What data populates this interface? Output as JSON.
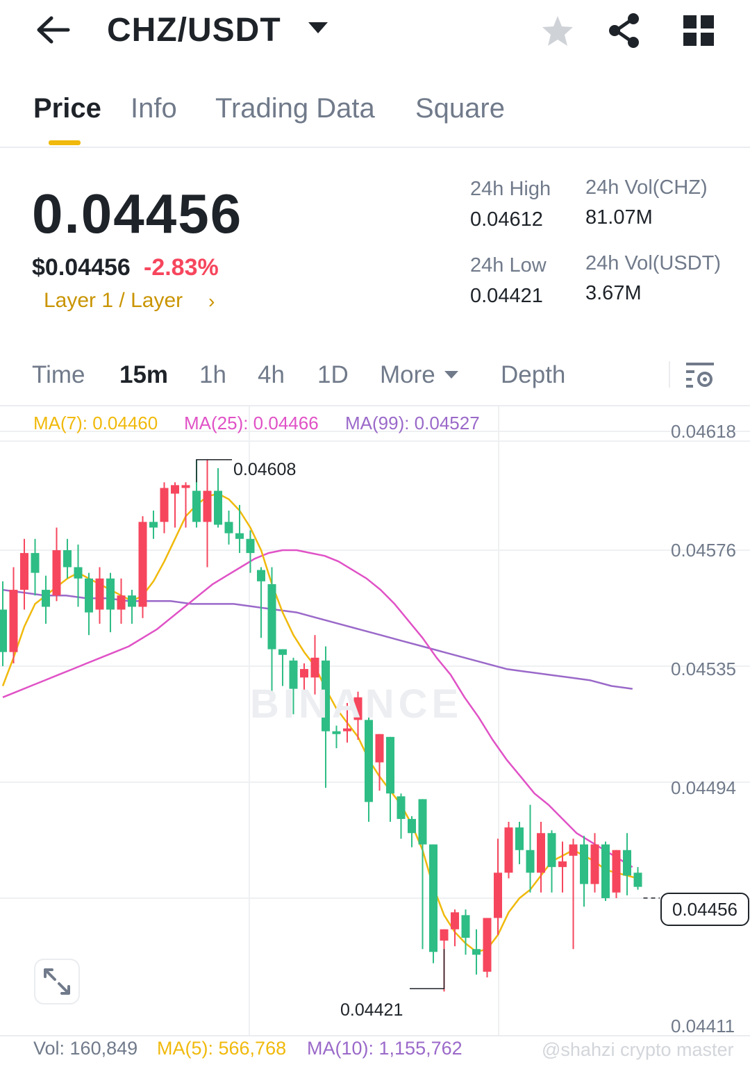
{
  "header": {
    "pair": "CHZ/USDT"
  },
  "tabs": [
    {
      "label": "Price"
    },
    {
      "label": "Info"
    },
    {
      "label": "Trading Data"
    },
    {
      "label": "Square"
    }
  ],
  "price": {
    "last": "0.04456",
    "usd": "$0.04456",
    "change": "-2.83%",
    "tag": "Layer 1 / Layer"
  },
  "stats": {
    "high_label": "24h High",
    "high": "0.04612",
    "low_label": "24h Low",
    "low": "0.04421",
    "vol_chz_label": "24h Vol(CHZ)",
    "vol_chz": "81.07M",
    "vol_usdt_label": "24h Vol(USDT)",
    "vol_usdt": "3.67M"
  },
  "intervals": {
    "time": "Time",
    "m15": "15m",
    "h1": "1h",
    "h4": "4h",
    "d1": "1D",
    "more": "More",
    "depth": "Depth"
  },
  "colors": {
    "up": "#f6465d",
    "down": "#2ebd85",
    "ma7": "#f0b90b",
    "ma25": "#e052c6",
    "ma99": "#9a69c9",
    "accent": "#f0b90b"
  },
  "chart_data": {
    "type": "candlestick",
    "indicators": {
      "ma7": "MA(7): 0.04460",
      "ma25": "MA(25): 0.04466",
      "ma99": "MA(99): 0.04527"
    },
    "y_axis_ticks": [
      "0.04618",
      "0.04576",
      "0.04535",
      "0.04494",
      "0.04411"
    ],
    "ylim": [
      0.04411,
      0.04618
    ],
    "highest_label": "0.04608",
    "lowest_label": "0.04421",
    "current_price_label": "0.04456",
    "brand_watermark": "BINANCE",
    "candles": [
      [
        0.04555,
        0.0454,
        0.04565,
        0.04535
      ],
      [
        0.0454,
        0.04562,
        0.0457,
        0.04536
      ],
      [
        0.04562,
        0.04575,
        0.0458,
        0.04555
      ],
      [
        0.04575,
        0.04568,
        0.0458,
        0.0456
      ],
      [
        0.04562,
        0.04556,
        0.04567,
        0.0455
      ],
      [
        0.0456,
        0.04576,
        0.04584,
        0.04558
      ],
      [
        0.04576,
        0.0457,
        0.0458,
        0.04566
      ],
      [
        0.0457,
        0.04566,
        0.04578,
        0.04556
      ],
      [
        0.04566,
        0.04554,
        0.04568,
        0.04546
      ],
      [
        0.04555,
        0.04566,
        0.0457,
        0.0455
      ],
      [
        0.04566,
        0.04555,
        0.04568,
        0.04547
      ],
      [
        0.04555,
        0.0456,
        0.04566,
        0.0455
      ],
      [
        0.0456,
        0.04556,
        0.04562,
        0.0455
      ],
      [
        0.04556,
        0.04586,
        0.04588,
        0.04552
      ],
      [
        0.04586,
        0.04584,
        0.0459,
        0.0458
      ],
      [
        0.04586,
        0.04598,
        0.046,
        0.04582
      ],
      [
        0.04596,
        0.04599,
        0.046,
        0.04584
      ],
      [
        0.04598,
        0.04599,
        0.046,
        0.04584
      ],
      [
        0.04597,
        0.04586,
        0.04608,
        0.04584
      ],
      [
        0.04586,
        0.04597,
        0.04608,
        0.0457
      ],
      [
        0.04597,
        0.04585,
        0.04605,
        0.04584
      ],
      [
        0.04586,
        0.04582,
        0.0459,
        0.04578
      ],
      [
        0.04582,
        0.0458,
        0.04592,
        0.04575
      ],
      [
        0.0458,
        0.04575,
        0.04583,
        0.04568
      ],
      [
        0.04569,
        0.04565,
        0.0457,
        0.04545
      ],
      [
        0.04564,
        0.04541,
        0.0457,
        0.04525
      ],
      [
        0.04541,
        0.04539,
        0.04541,
        0.04528
      ],
      [
        0.04537,
        0.04527,
        0.04538,
        0.04518
      ],
      [
        0.04531,
        0.04534,
        0.04536,
        0.04525
      ],
      [
        0.04531,
        0.04538,
        0.04546,
        0.04525
      ],
      [
        0.04537,
        0.04512,
        0.04542,
        0.04492
      ],
      [
        0.04512,
        0.04511,
        0.04514,
        0.04506
      ],
      [
        0.04512,
        0.04513,
        0.04522,
        0.04508
      ],
      [
        0.04516,
        0.04524,
        0.04526,
        0.04509
      ],
      [
        0.04516,
        0.04487,
        0.04517,
        0.0448
      ],
      [
        0.04501,
        0.04511,
        0.04511,
        0.04491
      ],
      [
        0.0451,
        0.0449,
        0.0451,
        0.0448
      ],
      [
        0.04489,
        0.04481,
        0.0449,
        0.04474
      ],
      [
        0.04481,
        0.04476,
        0.04482,
        0.04471
      ],
      [
        0.04488,
        0.04472,
        0.04488,
        0.04435
      ],
      [
        0.04472,
        0.04434,
        0.04472,
        0.0443
      ],
      [
        0.04438,
        0.04442,
        0.04442,
        0.0442
      ],
      [
        0.04442,
        0.04448,
        0.04449,
        0.04436
      ],
      [
        0.04447,
        0.04439,
        0.04449,
        0.04433
      ],
      [
        0.04435,
        0.04433,
        0.04442,
        0.04426
      ],
      [
        0.04427,
        0.04446,
        0.04446,
        0.04425
      ],
      [
        0.04446,
        0.04462,
        0.04474,
        0.0444
      ],
      [
        0.04462,
        0.04478,
        0.0448,
        0.0446
      ],
      [
        0.04478,
        0.0447,
        0.0448,
        0.04465
      ],
      [
        0.0447,
        0.04462,
        0.04486,
        0.04455
      ],
      [
        0.04462,
        0.04476,
        0.0448,
        0.04455
      ],
      [
        0.04476,
        0.04464,
        0.04477,
        0.04455
      ],
      [
        0.04464,
        0.04466,
        0.04473,
        0.04455
      ],
      [
        0.04468,
        0.04472,
        0.04474,
        0.04435
      ],
      [
        0.04472,
        0.04458,
        0.04475,
        0.0445
      ],
      [
        0.04458,
        0.04472,
        0.04476,
        0.04455
      ],
      [
        0.04472,
        0.04453,
        0.04473,
        0.04452
      ],
      [
        0.04455,
        0.0447,
        0.0447,
        0.04453
      ],
      [
        0.0447,
        0.04461,
        0.04476,
        0.04454
      ],
      [
        0.04462,
        0.04457,
        0.04464,
        0.04456
      ]
    ],
    "ma7_line": [
      0.04528,
      0.04538,
      0.04549,
      0.04557,
      0.0456,
      0.04563,
      0.04566,
      0.04568,
      0.04566,
      0.04564,
      0.04562,
      0.0456,
      0.04558,
      0.0456,
      0.04565,
      0.04572,
      0.0458,
      0.04588,
      0.04592,
      0.04595,
      0.04596,
      0.04594,
      0.0459,
      0.04584,
      0.04576,
      0.04564,
      0.04554,
      0.04546,
      0.0454,
      0.04535,
      0.04527,
      0.0452,
      0.04515,
      0.0451,
      0.04502,
      0.04496,
      0.04491,
      0.04486,
      0.04479,
      0.0447,
      0.04457,
      0.04447,
      0.04441,
      0.04437,
      0.04434,
      0.04435,
      0.0444,
      0.04448,
      0.04453,
      0.04456,
      0.04461,
      0.04466,
      0.04468,
      0.0447,
      0.04468,
      0.04466,
      0.04463,
      0.04462,
      0.04461,
      0.0446
    ],
    "ma25_line": [
      0.04524,
      0.04526,
      0.04528,
      0.0453,
      0.04532,
      0.04534,
      0.04536,
      0.04538,
      0.0454,
      0.04542,
      0.04545,
      0.04548,
      0.04552,
      0.04556,
      0.0456,
      0.04564,
      0.04567,
      0.0457,
      0.04573,
      0.04575,
      0.04576,
      0.04576,
      0.04575,
      0.04574,
      0.04572,
      0.04569,
      0.04566,
      0.04562,
      0.04557,
      0.04551,
      0.04545,
      0.04538,
      0.04532,
      0.04524,
      0.04517,
      0.04509,
      0.04502,
      0.04496,
      0.0449,
      0.04486,
      0.04481,
      0.04476,
      0.04473,
      0.0447,
      0.04467,
      0.04464
    ],
    "ma99_line": [
      0.04562,
      0.04561,
      0.0456,
      0.0456,
      0.04559,
      0.04559,
      0.04558,
      0.04558,
      0.04558,
      0.04557,
      0.04557,
      0.04557,
      0.04556,
      0.04555,
      0.04554,
      0.04552,
      0.0455,
      0.04548,
      0.04546,
      0.04544,
      0.04542,
      0.0454,
      0.04538,
      0.04536,
      0.04534,
      0.04533,
      0.04532,
      0.04531,
      0.0453,
      0.04528,
      0.04527
    ]
  },
  "volume": {
    "vol": "Vol: 160,849",
    "ma5": "MA(5): 566,768",
    "ma10": "MA(10): 1,155,762"
  },
  "watermark": "@shahzi crypto master"
}
